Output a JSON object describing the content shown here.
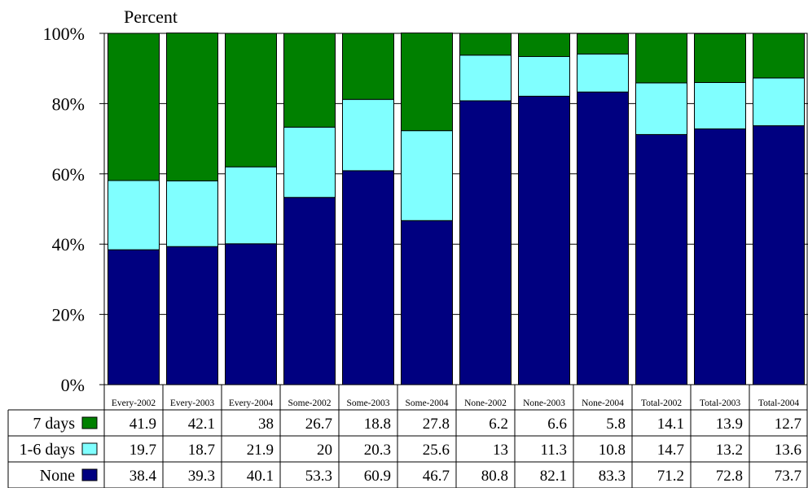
{
  "chart_data": {
    "type": "bar",
    "stacked": true,
    "percent_scale": true,
    "ylabel": "Percent",
    "ylim": [
      0,
      100
    ],
    "yticks": [
      "0%",
      "20%",
      "40%",
      "60%",
      "80%",
      "100%"
    ],
    "categories": [
      "Every-2002",
      "Every-2003",
      "Every-2004",
      "Some-2002",
      "Some-2003",
      "Some-2004",
      "None-2002",
      "None-2003",
      "None-2004",
      "Total-2002",
      "Total-2003",
      "Total-2004"
    ],
    "series": [
      {
        "name": "None",
        "color": "#000080",
        "values": [
          38.4,
          39.3,
          40.1,
          53.3,
          60.9,
          46.7,
          80.8,
          82.1,
          83.3,
          71.2,
          72.8,
          73.7
        ]
      },
      {
        "name": "1-6 days",
        "color": "#80FFFF",
        "values": [
          19.7,
          18.7,
          21.9,
          20,
          20.3,
          25.6,
          13,
          11.3,
          10.8,
          14.7,
          13.2,
          13.6
        ]
      },
      {
        "name": "7 days",
        "color": "#008000",
        "values": [
          41.9,
          42.1,
          38,
          26.7,
          18.8,
          27.8,
          6.2,
          6.6,
          5.8,
          14.1,
          13.9,
          12.7
        ]
      }
    ],
    "table_row_order": [
      "7 days",
      "1-6 days",
      "None"
    ],
    "grid": true,
    "legend": "data-table-left"
  }
}
